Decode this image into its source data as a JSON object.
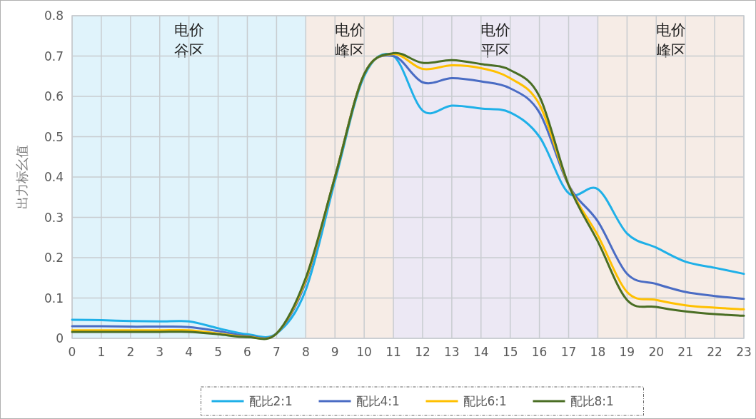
{
  "chart_data": {
    "type": "line",
    "ylabel": "出力标幺值",
    "x": [
      0,
      1,
      2,
      3,
      4,
      5,
      6,
      7,
      8,
      9,
      10,
      11,
      12,
      13,
      14,
      15,
      16,
      17,
      18,
      19,
      20,
      21,
      22,
      23
    ],
    "series": [
      {
        "name": "配比2:1",
        "color": "#1fb0e8",
        "values": [
          0.046,
          0.045,
          0.043,
          0.042,
          0.042,
          0.025,
          0.01,
          0.012,
          0.12,
          0.39,
          0.65,
          0.7,
          0.565,
          0.577,
          0.57,
          0.56,
          0.5,
          0.36,
          0.37,
          0.26,
          0.225,
          0.19,
          0.175,
          0.16
        ]
      },
      {
        "name": "配比4:1",
        "color": "#4a6cc4",
        "values": [
          0.03,
          0.03,
          0.029,
          0.029,
          0.028,
          0.018,
          0.006,
          0.012,
          0.14,
          0.4,
          0.655,
          0.7,
          0.635,
          0.645,
          0.637,
          0.62,
          0.56,
          0.38,
          0.29,
          0.16,
          0.135,
          0.115,
          0.105,
          0.098
        ]
      },
      {
        "name": "配比6:1",
        "color": "#ffc000",
        "values": [
          0.02,
          0.02,
          0.02,
          0.02,
          0.02,
          0.012,
          0.004,
          0.012,
          0.145,
          0.4,
          0.655,
          0.705,
          0.668,
          0.677,
          0.67,
          0.645,
          0.58,
          0.38,
          0.255,
          0.115,
          0.095,
          0.082,
          0.076,
          0.072
        ]
      },
      {
        "name": "配比8:1",
        "color": "#4a6e24",
        "values": [
          0.016,
          0.016,
          0.016,
          0.016,
          0.016,
          0.01,
          0.003,
          0.012,
          0.15,
          0.4,
          0.655,
          0.707,
          0.683,
          0.69,
          0.68,
          0.665,
          0.6,
          0.38,
          0.24,
          0.095,
          0.078,
          0.067,
          0.06,
          0.056
        ]
      }
    ],
    "xlim": [
      0,
      23
    ],
    "xticks": [
      0,
      1,
      2,
      3,
      4,
      5,
      6,
      7,
      8,
      9,
      10,
      11,
      12,
      13,
      14,
      15,
      16,
      17,
      18,
      19,
      20,
      21,
      22,
      23
    ],
    "ylim": [
      0,
      0.8
    ],
    "yticks": [
      0,
      0.1,
      0.2,
      0.3,
      0.4,
      0.5,
      0.6,
      0.7,
      0.8
    ],
    "bands": [
      {
        "axis": "x",
        "from": 0,
        "to": 8,
        "label": "电价谷区",
        "color": "#e0f3fb"
      },
      {
        "axis": "x",
        "from": 8,
        "to": 11,
        "label": "电价峰区",
        "color": "#f6ece6"
      },
      {
        "axis": "x",
        "from": 11,
        "to": 18,
        "label": "电价平区",
        "color": "#ece8f4"
      },
      {
        "axis": "x",
        "from": 18,
        "to": 23,
        "label": "电价峰区",
        "color": "#f6ece6"
      }
    ],
    "grid": true,
    "legend": "bottom",
    "marker": "none",
    "line_style": "solid"
  }
}
